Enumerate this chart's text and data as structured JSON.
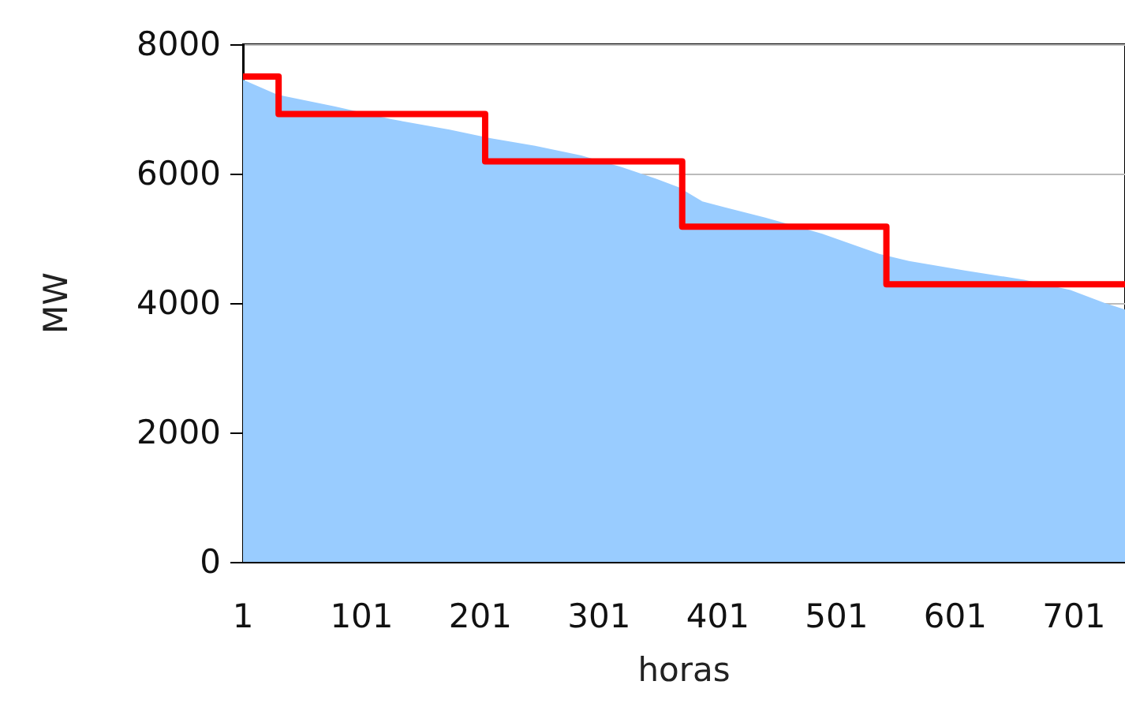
{
  "chart_data": {
    "type": "area",
    "xlabel": "horas",
    "ylabel": "MW",
    "xlim": [
      1,
      744
    ],
    "xticks": [
      1,
      101,
      201,
      301,
      401,
      501,
      601,
      701
    ],
    "ylim": [
      0,
      8000
    ],
    "yticks": [
      0,
      2000,
      4000,
      6000,
      8000
    ],
    "grid": "y",
    "series": [
      {
        "color": "#99ccff",
        "x": [
          1,
          30,
          78,
          126,
          175,
          209,
          247,
          286,
          320,
          349,
          368,
          388,
          407,
          441,
          489,
          537,
          562,
          610,
          659,
          698,
          727,
          744
        ],
        "values": [
          7450,
          7220,
          7040,
          6840,
          6680,
          6550,
          6430,
          6280,
          6100,
          5920,
          5790,
          5570,
          5480,
          5320,
          5070,
          4760,
          4650,
          4500,
          4360,
          4200,
          4000,
          3900
        ]
      },
      {
        "type": "step",
        "color": "#ff0000",
        "x": [
          1,
          31,
          205,
          371,
          543,
          744
        ],
        "values": [
          7500,
          6920,
          6190,
          5180,
          4290,
          4290
        ]
      }
    ]
  }
}
